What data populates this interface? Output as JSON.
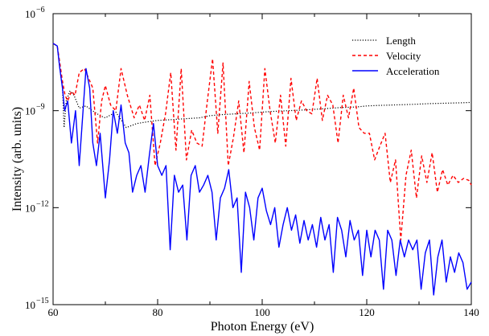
{
  "chart_data": {
    "type": "line",
    "xlabel": "Photon Energy (eV)",
    "ylabel": "Intensity (arb. units)",
    "xlim": [
      60,
      140
    ],
    "ylim": [
      1e-15,
      1e-06
    ],
    "yscale": "log",
    "legend_position": "top-right",
    "x_ticks": [
      {
        "value": 60,
        "label": "60"
      },
      {
        "value": 80,
        "label": "80"
      },
      {
        "value": 100,
        "label": "100"
      },
      {
        "value": 120,
        "label": "120"
      },
      {
        "value": 140,
        "label": "140"
      }
    ],
    "y_ticks": [
      {
        "value": -15,
        "base": "10",
        "exp": "−15"
      },
      {
        "value": -12,
        "base": "10",
        "exp": "−12"
      },
      {
        "value": -9,
        "base": "10",
        "exp": "−9"
      },
      {
        "value": -6,
        "base": "10",
        "exp": "−6"
      }
    ],
    "series": [
      {
        "name": "Length",
        "color": "#000000",
        "style": "dotted",
        "x": [
          60,
          60.8,
          61.3,
          61.8,
          62.1,
          62.5,
          63.2,
          64,
          65,
          66.3,
          67.5,
          69,
          70,
          72,
          74,
          76,
          78,
          80,
          82,
          85,
          88,
          90,
          92,
          95,
          98,
          100,
          102,
          105,
          108,
          110,
          112,
          115,
          118,
          120,
          122,
          125,
          128,
          130,
          132,
          135,
          138,
          140
        ],
        "y": [
          1.2e-07,
          1e-07,
          2e-08,
          5e-09,
          3e-10,
          2e-09,
          4e-09,
          3e-09,
          1.2e-09,
          1.4e-09,
          1e-09,
          7e-10,
          6e-10,
          9e-10,
          3e-10,
          4e-10,
          4.5e-10,
          5e-10,
          5.2e-10,
          5.6e-10,
          6e-10,
          7e-10,
          7.5e-10,
          8e-10,
          8.5e-10,
          9e-10,
          9.5e-10,
          1e-09,
          1.05e-09,
          1.1e-09,
          1.15e-09,
          1.25e-09,
          1.3e-09,
          1.4e-09,
          1.45e-09,
          1.5e-09,
          1.55e-09,
          1.6e-09,
          1.65e-09,
          1.7e-09,
          1.75e-09,
          1.8e-09
        ]
      },
      {
        "name": "Velocity",
        "color": "#ff0000",
        "style": "dashed",
        "x": [
          60,
          60.8,
          61.3,
          61.8,
          62.3,
          62.8,
          63.5,
          64.2,
          65,
          66,
          66.8,
          67.6,
          68.5,
          69.3,
          70,
          71,
          72,
          73,
          74.2,
          75.5,
          76.5,
          77.5,
          78.5,
          79.5,
          80.5,
          81.5,
          82.5,
          83.5,
          84.5,
          85.5,
          86.5,
          87.5,
          88.5,
          89.5,
          90.5,
          91.5,
          92.5,
          93.5,
          94.5,
          95.5,
          96.5,
          97.5,
          98.5,
          99.5,
          100.5,
          101.5,
          102.5,
          103.5,
          104.5,
          105.5,
          106.5,
          107.5,
          108.5,
          109.5,
          110.5,
          111.5,
          112.5,
          113.5,
          114.5,
          115.5,
          116.5,
          117.5,
          118.5,
          119.5,
          120.5,
          121.5,
          122.5,
          123.5,
          124.5,
          125.5,
          126.5,
          127.5,
          128.5,
          129.5,
          130.5,
          131.5,
          132.5,
          133.5,
          134.5,
          135.5,
          136.5,
          137.5,
          138.5,
          139.5,
          140
        ],
        "y": [
          1.2e-07,
          1e-07,
          3e-08,
          8e-09,
          3e-09,
          2e-09,
          4e-09,
          3e-09,
          1.5e-08,
          2e-08,
          1e-08,
          5e-09,
          1e-10,
          2e-09,
          6e-09,
          1.5e-09,
          1e-09,
          2e-08,
          3e-09,
          6e-10,
          1.5e-09,
          5e-10,
          3e-09,
          2e-11,
          1e-10,
          8e-10,
          1.5e-08,
          6e-11,
          2e-08,
          3e-11,
          2.5e-10,
          1e-10,
          8e-11,
          2e-09,
          4e-08,
          2e-10,
          3e-08,
          2e-11,
          1.5e-10,
          2e-09,
          5e-11,
          8e-09,
          3e-10,
          6e-11,
          2e-08,
          1e-09,
          1e-10,
          3e-09,
          8e-11,
          1e-08,
          5e-10,
          2e-09,
          1e-09,
          8e-10,
          1e-08,
          5e-10,
          3e-09,
          1.5e-09,
          1e-10,
          3e-09,
          6e-10,
          5e-09,
          3e-10,
          2e-10,
          2e-10,
          3e-11,
          8e-11,
          2e-10,
          6e-12,
          3e-11,
          1e-13,
          1e-11,
          6e-11,
          2e-12,
          4e-11,
          6e-12,
          5e-11,
          3e-12,
          1.5e-11,
          5e-12,
          1e-11,
          6e-12,
          8e-12,
          7e-12,
          5e-12
        ]
      },
      {
        "name": "Acceleration",
        "color": "#0000ff",
        "style": "solid",
        "x": [
          60,
          60.8,
          61.3,
          61.8,
          62.2,
          62.8,
          63.5,
          64.3,
          65,
          65.5,
          66.3,
          67,
          67.6,
          68.3,
          69,
          70,
          70.8,
          71.5,
          72.3,
          73,
          73.8,
          74.5,
          75.2,
          76,
          76.8,
          77.6,
          78.4,
          79.2,
          80,
          80.8,
          81.6,
          82.4,
          83.2,
          84,
          84.8,
          85.6,
          86.4,
          87.2,
          88,
          88.8,
          89.6,
          90.4,
          91.2,
          92,
          92.8,
          93.6,
          94.4,
          95.2,
          96,
          96.8,
          97.6,
          98.4,
          99.2,
          100,
          100.8,
          101.6,
          102.4,
          103.2,
          104,
          104.8,
          105.6,
          106.4,
          107.2,
          108,
          108.8,
          109.6,
          110.4,
          111.2,
          112,
          112.8,
          113.6,
          114.4,
          115.2,
          116,
          116.8,
          117.6,
          118.4,
          119.2,
          120,
          120.8,
          121.6,
          122.4,
          123.2,
          124,
          124.8,
          125.6,
          126.4,
          127.2,
          128,
          128.8,
          129.6,
          130.4,
          131.2,
          132,
          132.8,
          133.6,
          134.4,
          135.2,
          136,
          136.8,
          137.6,
          138.4,
          139.2,
          140
        ],
        "y": [
          1.2e-07,
          1e-07,
          2e-08,
          5e-09,
          1e-09,
          2e-09,
          1e-10,
          1e-09,
          2e-11,
          3e-10,
          2e-08,
          5e-09,
          1e-10,
          2e-11,
          2e-10,
          2e-12,
          3e-11,
          1e-09,
          2e-10,
          1.5e-09,
          1e-10,
          5e-11,
          3e-12,
          1e-11,
          2e-11,
          3e-12,
          4e-11,
          4e-10,
          2e-11,
          1e-11,
          2e-11,
          5e-14,
          1e-11,
          3e-12,
          5e-12,
          1e-13,
          1e-11,
          2e-11,
          3e-12,
          5e-12,
          1e-11,
          3e-12,
          1e-13,
          2e-12,
          4e-12,
          1.5e-11,
          1e-12,
          2e-12,
          1e-14,
          3e-12,
          1e-12,
          1e-13,
          2e-12,
          4e-12,
          8e-13,
          3e-13,
          1e-12,
          6e-14,
          3e-13,
          1e-12,
          2e-13,
          6e-13,
          8e-14,
          4e-13,
          1e-13,
          3e-13,
          6e-14,
          5e-13,
          1e-13,
          3e-13,
          1e-14,
          5e-13,
          2e-13,
          3e-14,
          4e-13,
          1e-13,
          2e-13,
          8e-15,
          2e-13,
          3e-14,
          2e-13,
          1e-13,
          3e-15,
          2e-13,
          1e-13,
          8e-15,
          1e-13,
          3e-14,
          1e-13,
          5e-14,
          1e-13,
          3e-15,
          4e-14,
          1e-13,
          2e-15,
          3e-14,
          1e-13,
          5e-15,
          3e-14,
          1e-14,
          4e-14,
          2e-14,
          3e-15,
          5e-15
        ]
      }
    ]
  }
}
